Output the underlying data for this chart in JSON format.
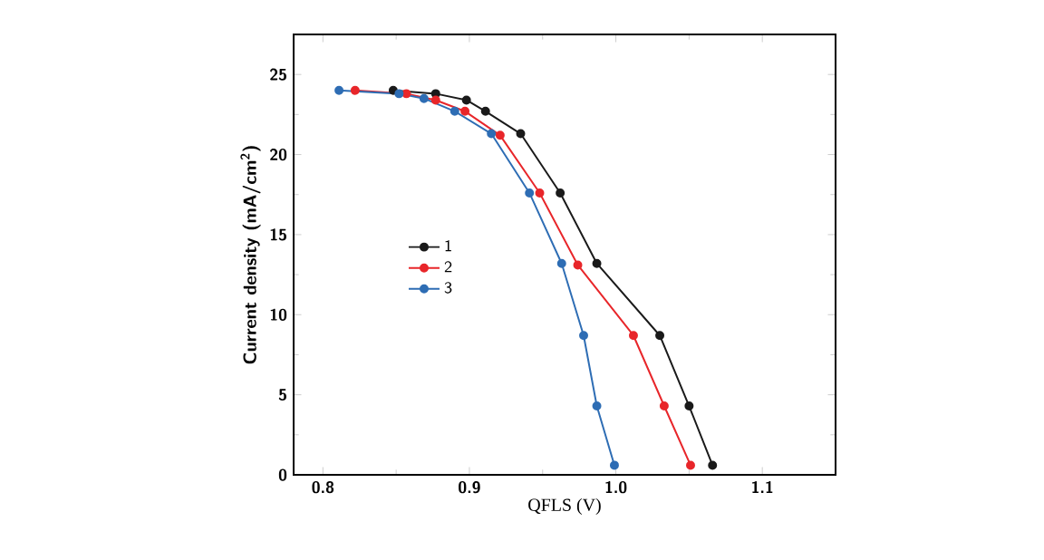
{
  "chart_data": {
    "type": "line",
    "xlabel": "QFLS (V)",
    "ylabel": "Current density (mA/cm$^{2}$)",
    "xlim": [
      0.78,
      1.15
    ],
    "ylim": [
      0,
      27.5
    ],
    "xticks": [
      0.8,
      0.9,
      {
        "value": 1,
        "label": "1.0"
      },
      1.1
    ],
    "yticks": [
      0,
      5,
      10,
      15,
      20,
      25
    ],
    "marker": "circle",
    "legend": "left",
    "grid": false,
    "series": [
      {
        "name": "1",
        "color": "#1a1a1a",
        "x": [
          0.848,
          0.877,
          0.898,
          0.911,
          0.935,
          0.962,
          0.987,
          1.03,
          1.05,
          1.066
        ],
        "values": [
          24.0,
          23.8,
          23.4,
          22.7,
          21.3,
          17.6,
          13.2,
          8.7,
          4.3,
          0.6
        ]
      },
      {
        "name": "2",
        "color": "#e8262a",
        "x": [
          0.822,
          0.857,
          0.877,
          0.897,
          0.921,
          0.948,
          0.974,
          1.012,
          1.033,
          1.051
        ],
        "values": [
          24.0,
          23.8,
          23.4,
          22.7,
          21.2,
          17.6,
          13.1,
          8.7,
          4.3,
          0.6
        ]
      },
      {
        "name": "3",
        "color": "#2e6db4",
        "x": [
          0.811,
          0.852,
          0.869,
          0.89,
          0.915,
          0.941,
          0.963,
          0.978,
          0.987,
          0.999
        ],
        "values": [
          24.0,
          23.8,
          23.5,
          22.7,
          21.3,
          17.6,
          13.2,
          8.7,
          4.3,
          0.6
        ]
      }
    ]
  }
}
